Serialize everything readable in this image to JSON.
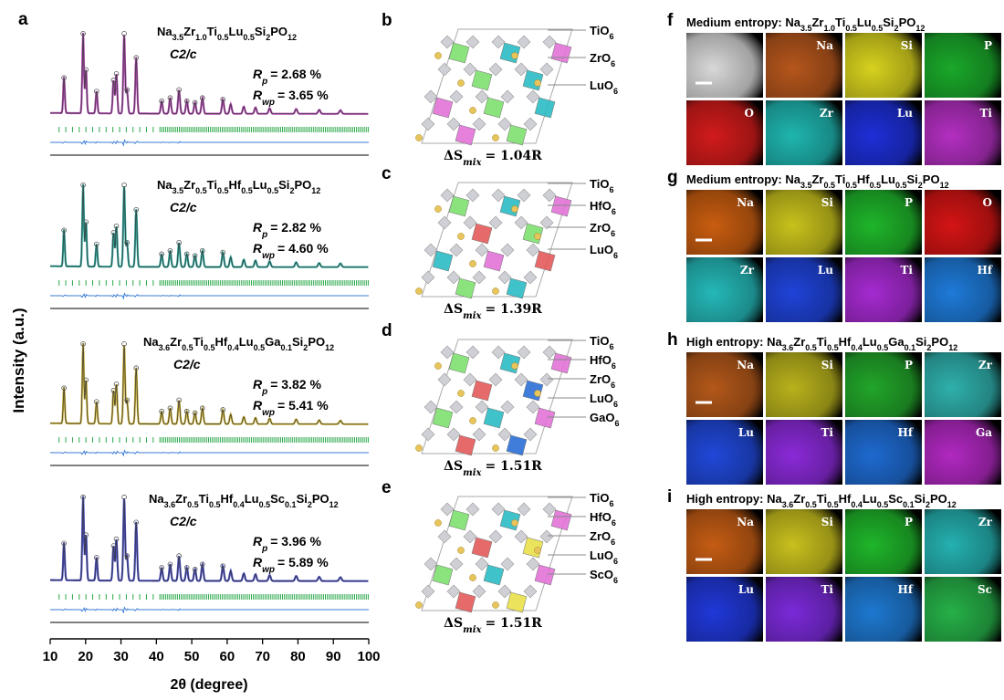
{
  "panel_a": {
    "letter": "a",
    "ylabel": "Intensity (a.u.)",
    "xlabel": "2θ (degree)",
    "xticks": [
      10,
      20,
      30,
      40,
      50,
      60,
      70,
      80,
      90,
      100
    ],
    "xlim": [
      10,
      100
    ],
    "peaks": [
      {
        "x": 13.9,
        "h": 0.45
      },
      {
        "x": 19.3,
        "h": 1.0
      },
      {
        "x": 20.1,
        "h": 0.55
      },
      {
        "x": 23.1,
        "h": 0.28
      },
      {
        "x": 27.9,
        "h": 0.42
      },
      {
        "x": 28.7,
        "h": 0.5
      },
      {
        "x": 30.9,
        "h": 1.0
      },
      {
        "x": 31.7,
        "h": 0.3
      },
      {
        "x": 34.3,
        "h": 0.7
      },
      {
        "x": 41.5,
        "h": 0.16
      },
      {
        "x": 43.9,
        "h": 0.2
      },
      {
        "x": 46.4,
        "h": 0.3
      },
      {
        "x": 48.6,
        "h": 0.16
      },
      {
        "x": 50.9,
        "h": 0.14
      },
      {
        "x": 53.0,
        "h": 0.2
      },
      {
        "x": 58.8,
        "h": 0.18
      },
      {
        "x": 61.0,
        "h": 0.12
      },
      {
        "x": 64.7,
        "h": 0.09
      },
      {
        "x": 68.0,
        "h": 0.08
      },
      {
        "x": 72.0,
        "h": 0.07
      },
      {
        "x": 79.5,
        "h": 0.06
      },
      {
        "x": 86.0,
        "h": 0.05
      },
      {
        "x": 92.0,
        "h": 0.045
      }
    ],
    "patterns": [
      {
        "color": "#b44db4",
        "formula": [
          "Na",
          "3.5",
          "Zr",
          "1.0",
          "Ti",
          "0.5",
          "Lu",
          "0.5",
          "Si",
          "2",
          "PO",
          "12"
        ],
        "space_group": "C2/c",
        "rp": "= 2.68 %",
        "rwp": "= 3.65 %"
      },
      {
        "color": "#2fa79c",
        "formula": [
          "Na",
          "3.5",
          "Zr",
          "0.5",
          "Ti",
          "0.5",
          "Hf",
          "0.5",
          "Lu",
          "0.5",
          "Si",
          "2",
          "PO",
          "12"
        ],
        "space_group": "C2/c",
        "rp": "= 2.82 %",
        "rwp": "= 4.60 %"
      },
      {
        "color": "#c9b03a",
        "formula": [
          "Na",
          "3.6",
          "Zr",
          "0.5",
          "Ti",
          "0.5",
          "Hf",
          "0.4",
          "Lu",
          "0.5",
          "Ga",
          "0.1",
          "Si",
          "2",
          "PO",
          "12"
        ],
        "space_group": "C2/c",
        "rp": "= 3.82 %",
        "rwp": "= 5.41 %"
      },
      {
        "color": "#4a4fc2",
        "formula": [
          "Na",
          "3.6",
          "Zr",
          "0.5",
          "Ti",
          "0.5",
          "Hf",
          "0.4",
          "Lu",
          "0.5",
          "Sc",
          "0.1",
          "Si",
          "2",
          "PO",
          "12"
        ],
        "space_group": "C2/c",
        "rp": "= 3.96 %",
        "rwp": "= 5.89 %"
      }
    ],
    "r_p_symbol": "R",
    "r_p_sub": "p",
    "r_wp_sub": "wp"
  },
  "structures": [
    {
      "letter": "b",
      "labels": [
        "TiO6",
        "ZrO6",
        "LuO6"
      ],
      "entropy": "1.04R"
    },
    {
      "letter": "c",
      "labels": [
        "TiO6",
        "HfO6",
        "ZrO6",
        "LuO6"
      ],
      "entropy": "1.39R"
    },
    {
      "letter": "d",
      "labels": [
        "TiO6",
        "HfO6",
        "ZrO6",
        "LuO6",
        "GaO6"
      ],
      "entropy": "1.51R"
    },
    {
      "letter": "e",
      "labels": [
        "TiO6",
        "HfO6",
        "ZrO6",
        "LuO6",
        "ScO6"
      ],
      "entropy": "1.51R"
    }
  ],
  "entropy_prefix": "ΔS",
  "entropy_sub": "mix",
  "maps": [
    {
      "letter": "f",
      "title": "Medium entropy: ",
      "formula": [
        "Na",
        "3.5",
        "Zr",
        "1.0",
        "Ti",
        "0.5",
        "Lu",
        "0.5",
        "Si",
        "2",
        "PO",
        "12"
      ],
      "tiles": [
        {
          "label": "",
          "color": "#d8d8d8"
        },
        {
          "label": "Na",
          "color": "#b5561c"
        },
        {
          "label": "Si",
          "color": "#d7d21e"
        },
        {
          "label": "P",
          "color": "#1aa82a"
        },
        {
          "label": "O",
          "color": "#d11b1b"
        },
        {
          "label": "Zr",
          "color": "#1fb5b0"
        },
        {
          "label": "Lu",
          "color": "#1d2fd6"
        },
        {
          "label": "Ti",
          "color": "#b22fc0"
        }
      ]
    },
    {
      "letter": "g",
      "title": "Medium entropy: ",
      "formula": [
        "Na",
        "3.5",
        "Zr",
        "0.5",
        "Ti",
        "0.5",
        "Hf",
        "0.5",
        "Lu",
        "0.5",
        "Si",
        "2",
        "PO",
        "12"
      ],
      "tiles": [
        {
          "label": "Na",
          "color": "#c85d10"
        },
        {
          "label": "Si",
          "color": "#c8c21c"
        },
        {
          "label": "P",
          "color": "#1fb52a"
        },
        {
          "label": "O",
          "color": "#d41414"
        },
        {
          "label": "Zr",
          "color": "#25b8b8"
        },
        {
          "label": "Lu",
          "color": "#1f43d8"
        },
        {
          "label": "Ti",
          "color": "#a52ad0"
        },
        {
          "label": "Hf",
          "color": "#1e7ad8"
        }
      ]
    },
    {
      "letter": "h",
      "title": "High entropy: ",
      "formula": [
        "Na",
        "3.6",
        "Zr",
        "0.5",
        "Ti",
        "0.5",
        "Hf",
        "0.4",
        "Lu",
        "0.5",
        "Ga",
        "0.1",
        "Si",
        "2",
        "PO",
        "12"
      ],
      "tiles": [
        {
          "label": "Na",
          "color": "#b3581a"
        },
        {
          "label": "Si",
          "color": "#b8b21c"
        },
        {
          "label": "P",
          "color": "#22a52a"
        },
        {
          "label": "Zr",
          "color": "#2fb0ac"
        },
        {
          "label": "Lu",
          "color": "#2048d8"
        },
        {
          "label": "Ti",
          "color": "#8a2ad8"
        },
        {
          "label": "Hf",
          "color": "#1e6ad0"
        },
        {
          "label": "Ga",
          "color": "#b028c0"
        }
      ]
    },
    {
      "letter": "i",
      "title": "High entropy: ",
      "formula": [
        "Na",
        "3.6",
        "Zr",
        "0.5",
        "Ti",
        "0.5",
        "Hf",
        "0.4",
        "Lu",
        "0.5",
        "Sc",
        "0.1",
        "Si",
        "2",
        "PO",
        "12"
      ],
      "tiles": [
        {
          "label": "Na",
          "color": "#c45c14"
        },
        {
          "label": "Si",
          "color": "#c8c01e"
        },
        {
          "label": "P",
          "color": "#1fb52a"
        },
        {
          "label": "Zr",
          "color": "#25b0b0"
        },
        {
          "label": "Lu",
          "color": "#2038d8"
        },
        {
          "label": "Ti",
          "color": "#7a2ad8"
        },
        {
          "label": "Hf",
          "color": "#1e78d0"
        },
        {
          "label": "Sc",
          "color": "#26b048"
        }
      ]
    }
  ],
  "chart_data": {
    "type": "line",
    "title": "",
    "xlabel": "2θ (degree)",
    "ylabel": "Intensity (a.u.)",
    "xlim": [
      10,
      100
    ],
    "grid": false,
    "series": [
      {
        "name": "Na3.5Zr1.0Ti0.5Lu0.5Si2PO12"
      },
      {
        "name": "Na3.5Zr0.5Ti0.5Hf0.5Lu0.5Si2PO12"
      },
      {
        "name": "Na3.6Zr0.5Ti0.5Hf0.4Lu0.5Ga0.1Si2PO12"
      },
      {
        "name": "Na3.6Zr0.5Ti0.5Hf0.4Lu0.5Sc0.1Si2PO12"
      }
    ]
  }
}
